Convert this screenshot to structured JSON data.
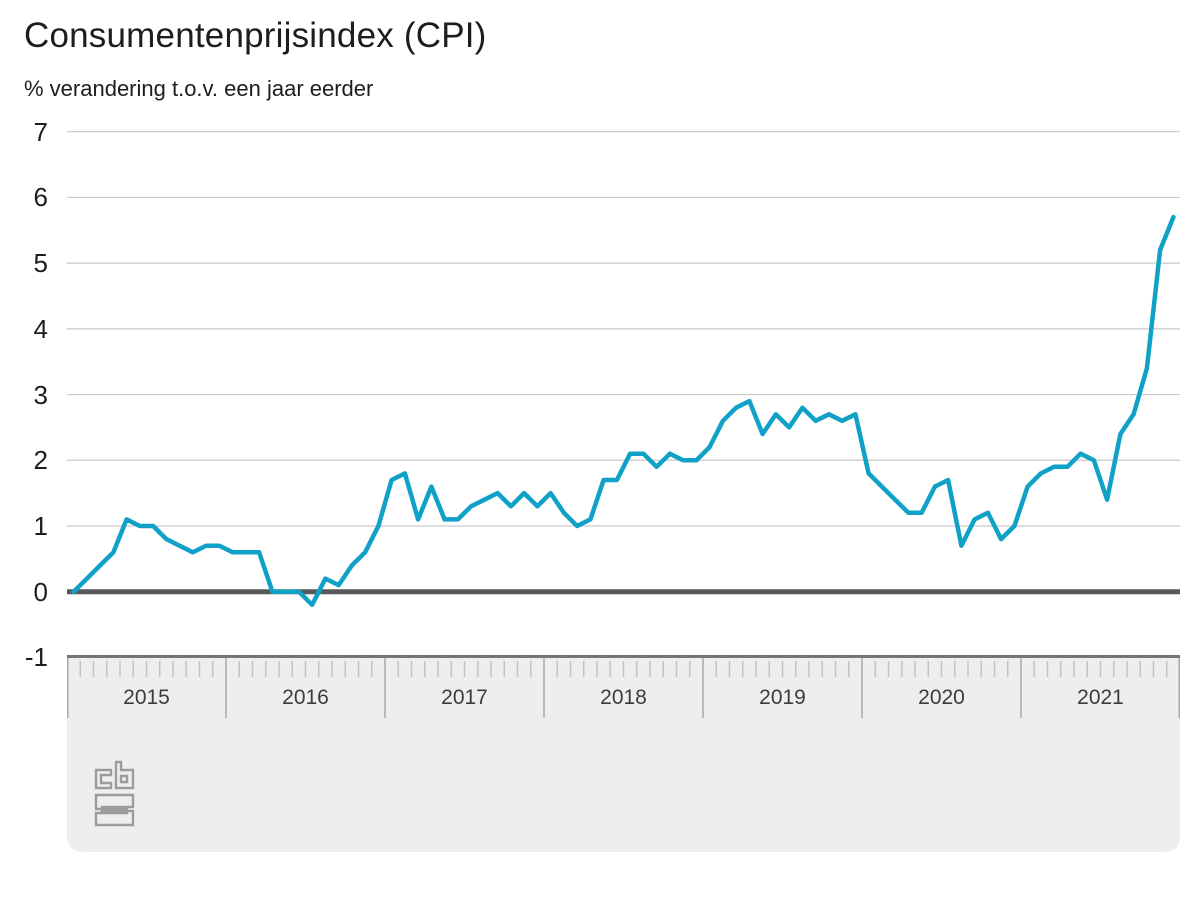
{
  "header": {
    "title": "Consumentenprijsindex (CPI)",
    "subtitle": "% verandering t.o.v. een jaar eerder"
  },
  "chart_data": {
    "type": "line",
    "title": "Consumentenprijsindex (CPI)",
    "subtitle": "% verandering t.o.v. een jaar eerder",
    "unit": "%",
    "frequency": "monthly",
    "x_start": "2015-01",
    "x_end": "2021-12",
    "categories_years": [
      "2015",
      "2016",
      "2017",
      "2018",
      "2019",
      "2020",
      "2021"
    ],
    "yticks": [
      7,
      6,
      5,
      4,
      3,
      2,
      1,
      0,
      "-1"
    ],
    "ytick_values": [
      7,
      6,
      5,
      4,
      3,
      2,
      1,
      0,
      -1
    ],
    "ylim": [
      -1,
      7
    ],
    "grid": "horizontal",
    "legend": "none",
    "series": [
      {
        "name": "CPI % verandering t.o.v. een jaar eerder",
        "color": "#10a1c7",
        "values_by_year": {
          "2015": [
            0.0,
            0.2,
            0.4,
            0.6,
            1.1,
            1.0,
            1.0,
            0.8,
            0.7,
            0.6,
            0.7,
            0.7
          ],
          "2016": [
            0.6,
            0.6,
            0.6,
            0.0,
            0.0,
            0.0,
            -0.2,
            0.2,
            0.1,
            0.4,
            0.6,
            1.0
          ],
          "2017": [
            1.7,
            1.8,
            1.1,
            1.6,
            1.1,
            1.1,
            1.3,
            1.4,
            1.5,
            1.3,
            1.5,
            1.3
          ],
          "2018": [
            1.5,
            1.2,
            1.0,
            1.1,
            1.7,
            1.7,
            2.1,
            2.1,
            1.9,
            2.1,
            2.0,
            2.0
          ],
          "2019": [
            2.2,
            2.6,
            2.8,
            2.9,
            2.4,
            2.7,
            2.5,
            2.8,
            2.6,
            2.7,
            2.6,
            2.7
          ],
          "2020": [
            1.8,
            1.6,
            1.4,
            1.2,
            1.2,
            1.6,
            1.7,
            0.7,
            1.1,
            1.2,
            0.8,
            1.0
          ],
          "2021": [
            1.6,
            1.8,
            1.9,
            1.9,
            2.1,
            2.0,
            1.4,
            2.4,
            2.7,
            3.4,
            5.2,
            5.7
          ]
        }
      }
    ]
  },
  "colors": {
    "line": "#10a1c7",
    "grid": "#c9c9c9",
    "zero_line": "#58595b",
    "band_bg": "#eeeeee",
    "band_border": "#757575",
    "month_tick": "#c3c3c3",
    "year_separator": "#a9a9a9",
    "year_label": "#3c3c3c",
    "text": "#1d1d1d",
    "logo": "#9c9c9c"
  },
  "footer": {
    "logo": "cbs-logo"
  }
}
